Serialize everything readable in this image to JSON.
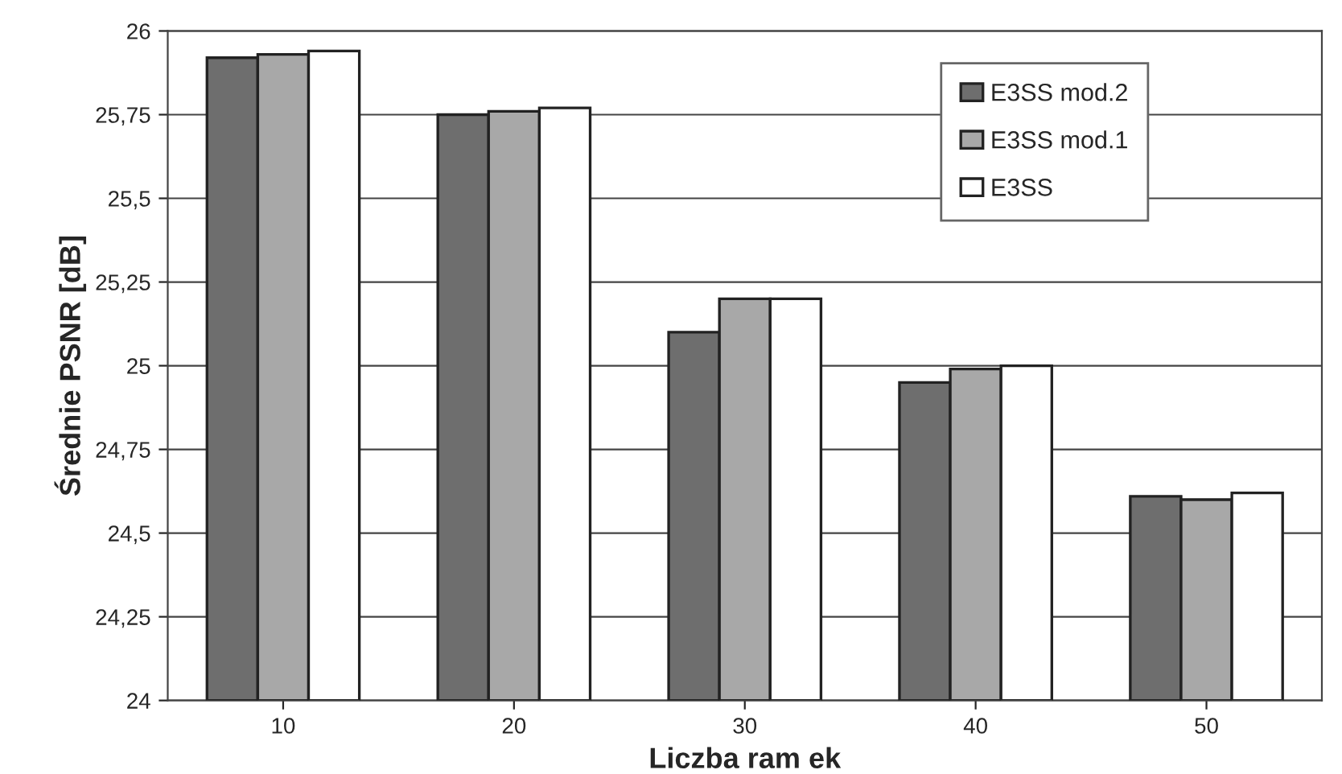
{
  "chart_data": {
    "type": "bar",
    "xlabel": "Liczba ram ek",
    "ylabel": "Średnie PSNR [dB]",
    "categories": [
      "10",
      "20",
      "30",
      "40",
      "50"
    ],
    "series": [
      {
        "name": "E3SS mod.2",
        "color": "#6e6e6e",
        "values": [
          25.92,
          25.75,
          25.1,
          24.95,
          24.61
        ]
      },
      {
        "name": "E3SS mod.1",
        "color": "#a8a8a8",
        "values": [
          25.93,
          25.76,
          25.2,
          24.99,
          24.6
        ]
      },
      {
        "name": "E3SS",
        "color": "#ffffff",
        "values": [
          25.94,
          25.77,
          25.2,
          25.0,
          24.62
        ]
      }
    ],
    "ylim": [
      24,
      26
    ],
    "yticks": [
      24,
      {
        "value": 24.25,
        "label": "24,25"
      },
      {
        "value": 24.5,
        "label": "24,5"
      },
      {
        "value": 24.75,
        "label": "24,75"
      },
      25,
      {
        "value": 25.25,
        "label": "25,25"
      },
      {
        "value": 25.5,
        "label": "25,5"
      },
      {
        "value": 25.75,
        "label": "25,75"
      },
      26
    ],
    "grid": "y",
    "legend": "top right"
  }
}
